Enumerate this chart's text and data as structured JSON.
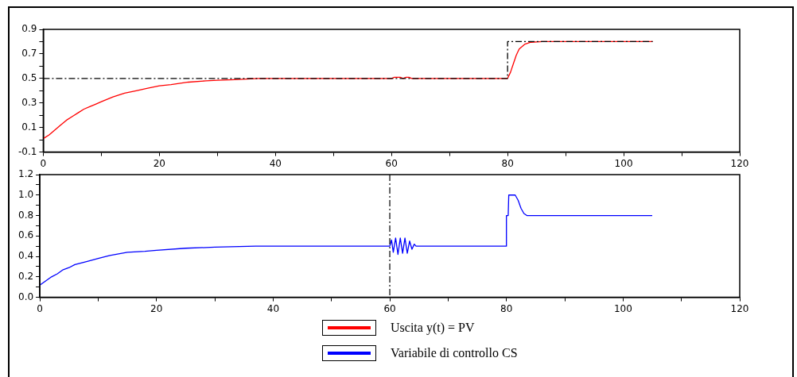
{
  "chart_data": [
    {
      "type": "line",
      "xlim": [
        0,
        120
      ],
      "ylim": [
        -0.1,
        0.9
      ],
      "xticks": [
        0,
        {
          "value": 10,
          "label": null
        },
        20,
        {
          "value": 30,
          "label": null
        },
        40,
        {
          "value": 50,
          "label": null
        },
        60,
        {
          "value": 70,
          "label": null
        },
        80,
        {
          "value": 90,
          "label": null
        },
        100,
        {
          "value": 110,
          "label": null
        },
        120
      ],
      "yticks": [
        -0.1,
        {
          "value": 0,
          "label": null
        },
        0.1,
        {
          "value": 0.2,
          "label": null
        },
        0.3,
        {
          "value": 0.4,
          "label": null
        },
        0.5,
        {
          "value": 0.6,
          "label": null
        },
        0.7,
        {
          "value": 0.8,
          "label": null
        },
        0.9
      ],
      "grid": false,
      "legend": "bottom",
      "marker": "none",
      "series": [
        {
          "color": "#000000",
          "line_style": "dashed",
          "x": [
            0,
            80,
            80,
            105
          ],
          "values": [
            0.5,
            0.5,
            0.8,
            0.8
          ]
        },
        {
          "name": "Uscita y(t) = PV",
          "color": "#ff0000",
          "line_style": "solid",
          "x": [
            0,
            1,
            2,
            3,
            4,
            5,
            6,
            7,
            8,
            9,
            10,
            12,
            14,
            16,
            18,
            20,
            22,
            25,
            28,
            30,
            33,
            37,
            60,
            60.5,
            61.5,
            62,
            62.5,
            63,
            63.5,
            80,
            80.5,
            81,
            81.5,
            82,
            83,
            84,
            86,
            105
          ],
          "values": [
            0.01,
            0.04,
            0.08,
            0.12,
            0.16,
            0.19,
            0.22,
            0.25,
            0.27,
            0.29,
            0.31,
            0.35,
            0.38,
            0.4,
            0.42,
            0.44,
            0.45,
            0.47,
            0.48,
            0.485,
            0.49,
            0.5,
            0.5,
            0.51,
            0.51,
            0.5,
            0.51,
            0.51,
            0.5,
            0.5,
            0.55,
            0.62,
            0.69,
            0.74,
            0.78,
            0.795,
            0.8,
            0.8
          ]
        }
      ]
    },
    {
      "type": "line",
      "xlim": [
        0,
        120
      ],
      "ylim": [
        0,
        1.2
      ],
      "xticks": [
        0,
        {
          "value": 10,
          "label": null
        },
        20,
        {
          "value": 30,
          "label": null
        },
        40,
        {
          "value": 50,
          "label": null
        },
        60,
        {
          "value": 70,
          "label": null
        },
        80,
        {
          "value": 90,
          "label": null
        },
        100,
        {
          "value": 110,
          "label": null
        },
        120
      ],
      "yticks": [
        {
          "value": 0,
          "label": "0.0"
        },
        {
          "value": 0.1,
          "label": null
        },
        0.2,
        {
          "value": 0.3,
          "label": null
        },
        0.4,
        {
          "value": 0.5,
          "label": null
        },
        0.6,
        {
          "value": 0.7,
          "label": null
        },
        0.8,
        {
          "value": 0.9,
          "label": null
        },
        {
          "value": 1,
          "label": "1.0"
        },
        {
          "value": 1.1,
          "label": null
        },
        1.2
      ],
      "grid": false,
      "legend": "bottom",
      "marker": "none",
      "ref_lines": [
        {
          "axis": "x",
          "value": 60,
          "color": "#000000",
          "line_style": "dashed"
        }
      ],
      "series": [
        {
          "name": "Variabile di controllo CS",
          "color": "#0000ff",
          "line_style": "solid",
          "x": [
            0,
            1,
            2,
            3,
            4,
            5,
            6,
            8,
            10,
            12,
            15,
            18,
            20,
            25,
            30,
            37,
            60,
            60.3,
            60.6,
            61,
            61.4,
            61.8,
            62.2,
            62.6,
            63,
            63.4,
            63.8,
            64.2,
            64.5,
            80,
            80,
            80.3,
            80.4,
            81.5,
            82,
            82.5,
            83,
            83.5,
            105
          ],
          "values": [
            0.12,
            0.16,
            0.2,
            0.23,
            0.27,
            0.29,
            0.32,
            0.35,
            0.38,
            0.41,
            0.44,
            0.45,
            0.46,
            0.48,
            0.49,
            0.5,
            0.5,
            0.56,
            0.44,
            0.58,
            0.42,
            0.58,
            0.43,
            0.58,
            0.43,
            0.55,
            0.47,
            0.52,
            0.5,
            0.5,
            0.8,
            0.8,
            1.0,
            1.0,
            0.95,
            0.87,
            0.82,
            0.8,
            0.8
          ]
        }
      ]
    }
  ]
}
